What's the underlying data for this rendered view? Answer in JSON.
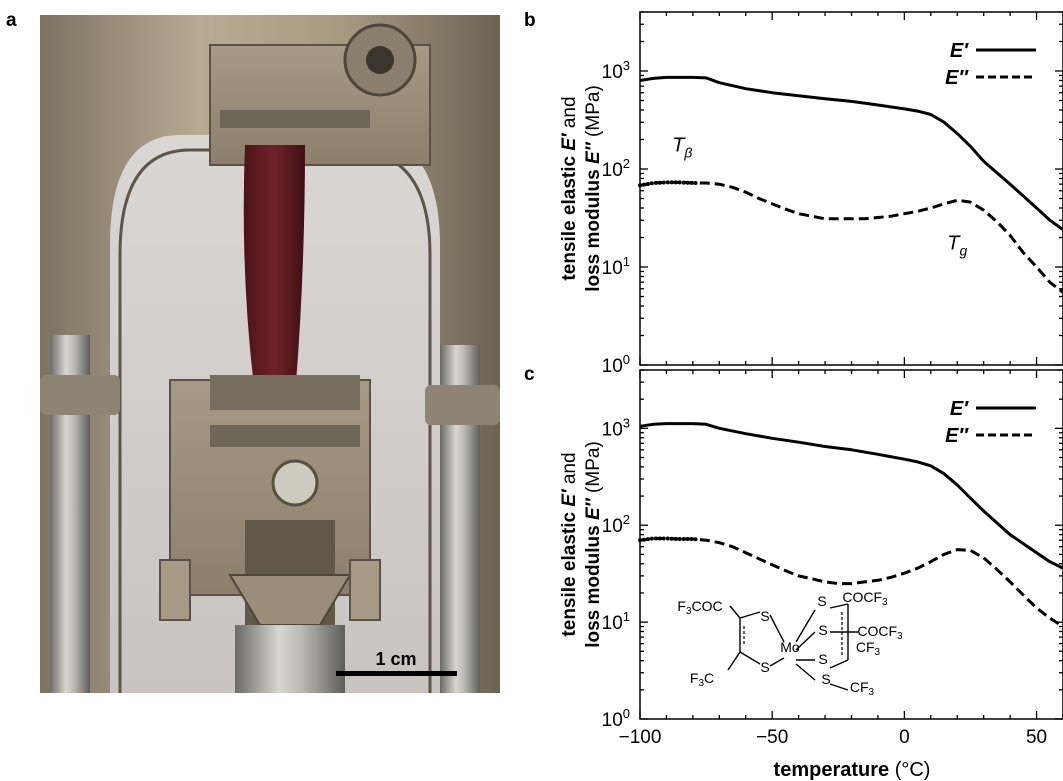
{
  "panel_labels": {
    "a": "a",
    "b": "b",
    "c": "c"
  },
  "scale_bar_label": "1 cm",
  "chart_data": [
    {
      "panel": "b",
      "type": "line",
      "xlabel": "temperature (°C)",
      "ylabel_line1": "tensile elastic E′ and",
      "ylabel_line2": "loss modulus E″ (MPa)",
      "yscale": "log",
      "xlim": [
        -100,
        60
      ],
      "ylim": [
        1,
        4000
      ],
      "xticks": [
        -100,
        -50,
        0,
        50
      ],
      "yticks": [
        {
          "value": 1,
          "base": "10",
          "exp": "0"
        },
        {
          "value": 10,
          "base": "10",
          "exp": "1"
        },
        {
          "value": 100,
          "base": "10",
          "exp": "2"
        },
        {
          "value": 1000,
          "base": "10",
          "exp": "3"
        }
      ],
      "legend_position": "top-right",
      "series": [
        {
          "name": "E′",
          "style": "solid",
          "x": [
            -100,
            -95,
            -90,
            -85,
            -80,
            -75,
            -70,
            -60,
            -50,
            -40,
            -30,
            -20,
            -10,
            0,
            5,
            10,
            15,
            20,
            25,
            30,
            40,
            50,
            55,
            60
          ],
          "y": [
            800,
            840,
            860,
            860,
            860,
            850,
            760,
            660,
            600,
            560,
            520,
            490,
            450,
            410,
            390,
            360,
            300,
            230,
            170,
            120,
            70,
            40,
            30,
            24
          ]
        },
        {
          "name": "E″",
          "style": "dashed",
          "x": [
            -100,
            -95,
            -90,
            -85,
            -80,
            -75,
            -70,
            -65,
            -60,
            -55,
            -50,
            -45,
            -40,
            -35,
            -30,
            -25,
            -20,
            -15,
            -10,
            -5,
            0,
            5,
            10,
            15,
            20,
            25,
            30,
            35,
            40,
            45,
            50,
            55,
            60
          ],
          "y": [
            68,
            72,
            73,
            73,
            72,
            72,
            70,
            65,
            58,
            50,
            44,
            39,
            35,
            33,
            31,
            31,
            31,
            31,
            32,
            33,
            35,
            37,
            40,
            44,
            48,
            46,
            38,
            29,
            21,
            14,
            10,
            7,
            5.5
          ]
        }
      ],
      "annotations": [
        {
          "base": "T",
          "sub": "β"
        },
        {
          "base": "T",
          "sub": "g"
        }
      ]
    },
    {
      "panel": "c",
      "type": "line",
      "xlabel": "temperature (°C)",
      "ylabel_line1": "tensile elastic E′ and",
      "ylabel_line2": "loss modulus E″ (MPa)",
      "yscale": "log",
      "xlim": [
        -100,
        60
      ],
      "ylim": [
        1,
        4000
      ],
      "xticks": [
        -100,
        -50,
        0,
        50
      ],
      "yticks": [
        {
          "value": 1,
          "base": "10",
          "exp": "0"
        },
        {
          "value": 10,
          "base": "10",
          "exp": "1"
        },
        {
          "value": 100,
          "base": "10",
          "exp": "2"
        },
        {
          "value": 1000,
          "base": "10",
          "exp": "3"
        }
      ],
      "legend_position": "top-right",
      "series": [
        {
          "name": "E′",
          "style": "solid",
          "x": [
            -100,
            -95,
            -90,
            -85,
            -80,
            -75,
            -70,
            -60,
            -50,
            -40,
            -30,
            -20,
            -10,
            0,
            5,
            10,
            15,
            20,
            25,
            30,
            40,
            50,
            55,
            60
          ],
          "y": [
            1050,
            1100,
            1120,
            1120,
            1120,
            1100,
            1000,
            880,
            790,
            720,
            650,
            600,
            540,
            480,
            450,
            410,
            340,
            260,
            190,
            140,
            80,
            52,
            42,
            36
          ]
        },
        {
          "name": "E″",
          "style": "dashed",
          "x": [
            -100,
            -95,
            -90,
            -85,
            -80,
            -75,
            -70,
            -65,
            -60,
            -55,
            -50,
            -45,
            -40,
            -35,
            -30,
            -25,
            -20,
            -15,
            -10,
            -5,
            0,
            5,
            10,
            15,
            20,
            25,
            30,
            35,
            40,
            45,
            50,
            55,
            60
          ],
          "y": [
            70,
            73,
            73,
            72,
            72,
            70,
            66,
            60,
            52,
            45,
            39,
            34,
            30,
            28,
            26,
            25,
            25,
            26,
            27,
            29,
            32,
            36,
            42,
            50,
            56,
            55,
            46,
            35,
            26,
            19,
            14,
            11,
            9
          ]
        }
      ],
      "molecule_labels": [
        "F3COC",
        "COCF3",
        "COCF3",
        "CF3",
        "F3C",
        "CF3",
        "S",
        "S",
        "S",
        "S",
        "S",
        "S",
        "Mo"
      ]
    }
  ]
}
